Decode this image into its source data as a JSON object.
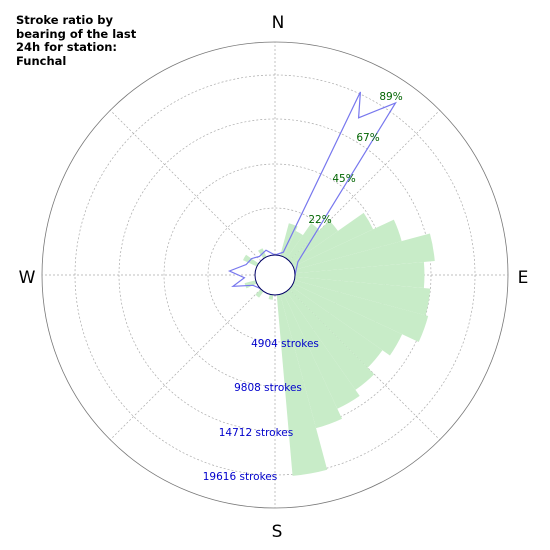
{
  "title": "Stroke ratio by bearing of the last 24h for station: Funchal",
  "chart_data": {
    "type": "polar-bar",
    "title": "Stroke ratio by bearing of the last 24h for station: Funchal",
    "compass_labels": [
      "N",
      "E",
      "S",
      "W"
    ],
    "sector_width_deg": 10,
    "stroke_ring_labels": [
      "4904 strokes",
      "9808 strokes",
      "14712 strokes",
      "19616 strokes"
    ],
    "stroke_ring_values": [
      4904,
      9808,
      14712,
      19616
    ],
    "ratio_ring_labels": [
      "22%",
      "45%",
      "67%",
      "89%"
    ],
    "ratio_ring_values": [
      22,
      45,
      67,
      89
    ],
    "strokes_by_bearing": [
      {
        "bearing": 20,
        "value": 3500
      },
      {
        "bearing": 30,
        "value": 3000
      },
      {
        "bearing": 40,
        "value": 4500
      },
      {
        "bearing": 50,
        "value": 6000
      },
      {
        "bearing": 60,
        "value": 9500
      },
      {
        "bearing": 70,
        "value": 12000
      },
      {
        "bearing": 80,
        "value": 15200
      },
      {
        "bearing": 90,
        "value": 14000
      },
      {
        "bearing": 100,
        "value": 14700
      },
      {
        "bearing": 110,
        "value": 15000
      },
      {
        "bearing": 120,
        "value": 13000
      },
      {
        "bearing": 130,
        "value": 12000
      },
      {
        "bearing": 140,
        "value": 13000
      },
      {
        "bearing": 150,
        "value": 13800
      },
      {
        "bearing": 160,
        "value": 15000
      },
      {
        "bearing": 170,
        "value": 19800
      },
      {
        "bearing": 190,
        "value": 500
      },
      {
        "bearing": 220,
        "value": 800
      },
      {
        "bearing": 250,
        "value": 1200
      },
      {
        "bearing": 300,
        "value": 1600
      },
      {
        "bearing": 330,
        "value": 1000
      }
    ],
    "ratio_by_bearing": [
      {
        "bearing": 0,
        "value": 0
      },
      {
        "bearing": 20,
        "value": 2
      },
      {
        "bearing": 25,
        "value": 90
      },
      {
        "bearing": 28,
        "value": 78
      },
      {
        "bearing": 35,
        "value": 94
      },
      {
        "bearing": 60,
        "value": 3
      },
      {
        "bearing": 90,
        "value": 0
      },
      {
        "bearing": 180,
        "value": 0
      },
      {
        "bearing": 245,
        "value": 2
      },
      {
        "bearing": 255,
        "value": 11
      },
      {
        "bearing": 265,
        "value": 5
      },
      {
        "bearing": 275,
        "value": 12
      },
      {
        "bearing": 290,
        "value": 5
      },
      {
        "bearing": 305,
        "value": 4
      },
      {
        "bearing": 320,
        "value": 2
      },
      {
        "bearing": 340,
        "value": 3
      },
      {
        "bearing": 360,
        "value": 0
      }
    ],
    "bar_color": "#c8ecc8",
    "line_color": "#7777ee",
    "ratio_label_color": "#006400",
    "stroke_label_color": "#0000cc",
    "grid": true
  }
}
